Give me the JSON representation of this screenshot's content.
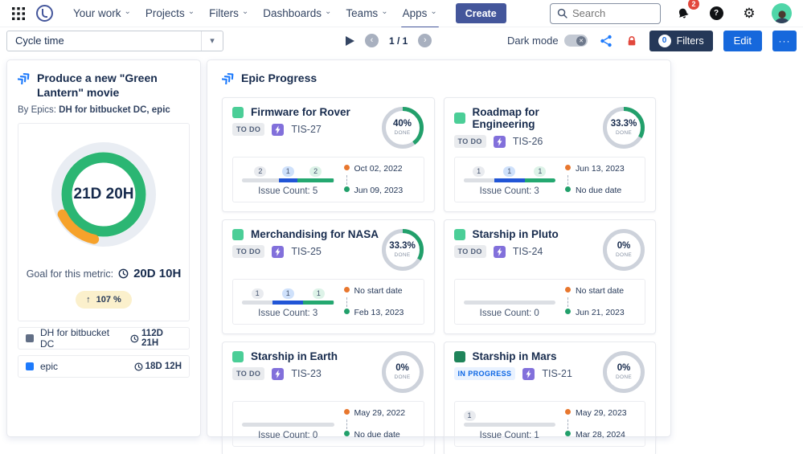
{
  "colors": {
    "create_navy": "#44569B",
    "filters_navy": "#253858",
    "action_blue": "#1668DC",
    "accent_blue": "#1D7AFC",
    "alert_red": "#E2483D",
    "lock_red": "#E2483D",
    "donut_green": "#2BB673",
    "donut_track": "#E9EDF3",
    "donut_over": "#F6A22B",
    "ring_green": "#22A06B",
    "ring_track": "#CDD2DB",
    "bar_gray": "#DCDFE4",
    "bar_blue": "#2155D6",
    "bar_green": "#24A870",
    "dot_start": "#E8772E",
    "dot_due": "#22A06B",
    "epic_purple": "#8270DB",
    "goal_badge_bg": "#FBF0CC"
  },
  "nav": {
    "items": [
      {
        "label": "Your work"
      },
      {
        "label": "Projects"
      },
      {
        "label": "Filters"
      },
      {
        "label": "Dashboards"
      },
      {
        "label": "Teams"
      },
      {
        "label": "Apps"
      }
    ],
    "active_item": "Apps",
    "create_label": "Create",
    "search_placeholder": "Search",
    "notification_count": "2"
  },
  "toolbar": {
    "dashboard_select": "Cycle time",
    "page_indicator": "1 / 1",
    "dark_mode_label": "Dark mode",
    "filters_label": "Filters",
    "filters_count": "0",
    "edit_label": "Edit",
    "more_label": "···"
  },
  "cycle_time": {
    "title": "Produce a new \"Green Lantern\" movie",
    "by_label": "By Epics:",
    "by_value": "DH for bitbucket DC, epic",
    "donut_center": "21D 20H",
    "goal_label": "Goal for this metric:",
    "goal_value": "20D 10H",
    "delta": "107 %",
    "legend": [
      {
        "label": "DH for bitbucket DC",
        "value": "112D 21H",
        "color": "#626F86"
      },
      {
        "label": "epic",
        "value": "18D 12H",
        "color": "#1D7AFC"
      }
    ]
  },
  "epic_progress": {
    "title": "Epic Progress",
    "cards": [
      {
        "name": "Firmware for Rover",
        "status": "TO DO",
        "status_type": "todo",
        "key": "TIS-27",
        "percent": "40%",
        "percent_value": 40,
        "done_label": "DONE",
        "issue_count_label": "Issue Count: 5",
        "segments": [
          {
            "count": 2,
            "color": "gray"
          },
          {
            "count": 1,
            "color": "blue"
          },
          {
            "count": 2,
            "color": "green"
          }
        ],
        "start_date": "Oct 02, 2022",
        "due_date": "Jun 09, 2023",
        "epic_color": "#4BCE97"
      },
      {
        "name": "Roadmap for Engineering",
        "status": "TO DO",
        "status_type": "todo",
        "key": "TIS-26",
        "percent": "33.3%",
        "percent_value": 33.3,
        "done_label": "DONE",
        "issue_count_label": "Issue Count: 3",
        "segments": [
          {
            "count": 1,
            "color": "gray"
          },
          {
            "count": 1,
            "color": "blue"
          },
          {
            "count": 1,
            "color": "green"
          }
        ],
        "start_date": "Jun 13, 2023",
        "due_date": "No due date",
        "epic_color": "#4BCE97"
      },
      {
        "name": "Merchandising for NASA",
        "status": "TO DO",
        "status_type": "todo",
        "key": "TIS-25",
        "percent": "33.3%",
        "percent_value": 33.3,
        "done_label": "DONE",
        "issue_count_label": "Issue Count: 3",
        "segments": [
          {
            "count": 1,
            "color": "gray"
          },
          {
            "count": 1,
            "color": "blue"
          },
          {
            "count": 1,
            "color": "green"
          }
        ],
        "start_date": "No start date",
        "due_date": "Feb 13, 2023",
        "epic_color": "#4BCE97"
      },
      {
        "name": "Starship in Pluto",
        "status": "TO DO",
        "status_type": "todo",
        "key": "TIS-24",
        "percent": "0%",
        "percent_value": 0,
        "done_label": "DONE",
        "issue_count_label": "Issue Count: 0",
        "segments": [],
        "start_date": "No start date",
        "due_date": "Jun 21, 2023",
        "epic_color": "#4BCE97"
      },
      {
        "name": "Starship in Earth",
        "status": "TO DO",
        "status_type": "todo",
        "key": "TIS-23",
        "percent": "0%",
        "percent_value": 0,
        "done_label": "DONE",
        "issue_count_label": "Issue Count: 0",
        "segments": [],
        "start_date": "May 29, 2022",
        "due_date": "No due date",
        "epic_color": "#4BCE97"
      },
      {
        "name": "Starship in Mars",
        "status": "IN PROGRESS",
        "status_type": "inprogress",
        "key": "TIS-21",
        "percent": "0%",
        "percent_value": 0,
        "done_label": "DONE",
        "issue_count_label": "Issue Count: 1",
        "segments": [
          {
            "count": 1,
            "color": "gray"
          }
        ],
        "pill_align": "left",
        "start_date": "May 29, 2023",
        "due_date": "Mar 28, 2024",
        "epic_color": "#1F845A"
      }
    ]
  }
}
